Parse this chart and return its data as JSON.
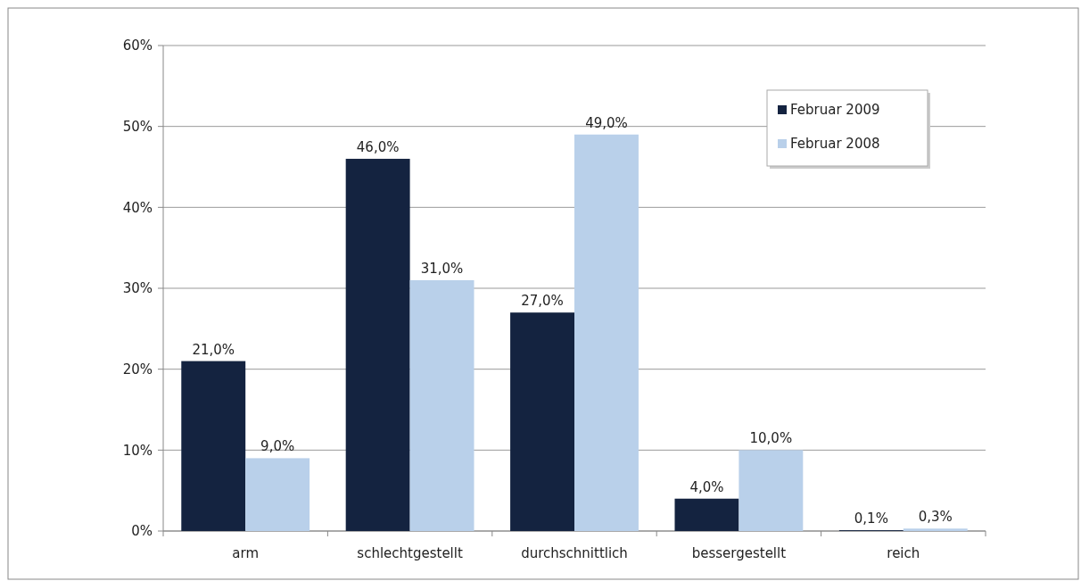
{
  "chart_data": {
    "type": "bar",
    "categories": [
      "arm",
      "schlechtgestellt",
      "durchschnittlich",
      "bessergestellt",
      "reich"
    ],
    "series": [
      {
        "name": "Februar 2009",
        "color": "#142340",
        "values": [
          21.0,
          46.0,
          27.0,
          4.0,
          0.1
        ],
        "value_labels": [
          "21,0%",
          "46,0%",
          "27,0%",
          "4,0%",
          "0,1%"
        ]
      },
      {
        "name": "Februar 2008",
        "color": "#b9d0ea",
        "values": [
          9.0,
          31.0,
          49.0,
          10.0,
          0.3
        ],
        "value_labels": [
          "9,0%",
          "31,0%",
          "49,0%",
          "10,0%",
          "0,3%"
        ]
      }
    ],
    "ylim": [
      0,
      60
    ],
    "yticks": [
      {
        "value": 0,
        "label": "0%"
      },
      {
        "value": 10,
        "label": "10%"
      },
      {
        "value": 20,
        "label": "20%"
      },
      {
        "value": 30,
        "label": "30%"
      },
      {
        "value": 40,
        "label": "40%"
      },
      {
        "value": 50,
        "label": "50%"
      },
      {
        "value": 60,
        "label": "60%"
      }
    ],
    "grid": "y",
    "legend": "top right"
  }
}
